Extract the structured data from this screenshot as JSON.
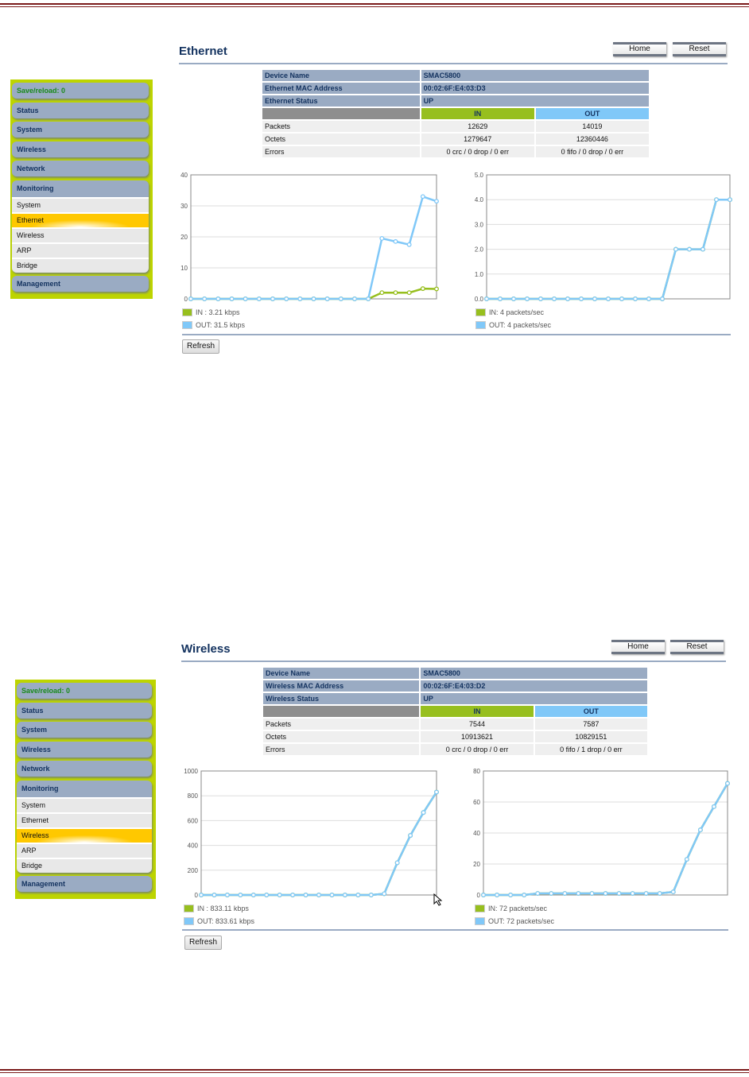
{
  "colors": {
    "in": "#97bf1e",
    "out": "#80c8f8"
  },
  "sections": [
    {
      "title": "Ethernet",
      "home": "Home",
      "reset": "Reset",
      "refresh": "Refresh",
      "sidebar": {
        "save": "Save/reload: 0",
        "items": [
          "Status",
          "System",
          "Wireless",
          "Network"
        ],
        "group": "Monitoring",
        "subs": [
          "System",
          "Ethernet",
          "Wireless",
          "ARP",
          "Bridge"
        ],
        "active": 1,
        "last": "Management"
      },
      "info": [
        [
          "Device Name",
          "SMAC5800"
        ],
        [
          "Ethernet MAC Address",
          "00:02:6F:E4:03:D3"
        ],
        [
          "Ethernet Status",
          "UP"
        ]
      ],
      "in_label": "IN",
      "out_label": "OUT",
      "stats": [
        [
          "Packets",
          "12629",
          "14019"
        ],
        [
          "Octets",
          "1279647",
          "12360446"
        ],
        [
          "Errors",
          "0 crc / 0 drop / 0 err",
          "0 fifo / 0 drop / 0 err"
        ]
      ],
      "charts": [
        {
          "type": "line",
          "ylim": [
            0,
            40
          ],
          "yticks": [
            "0",
            "10",
            "20",
            "30",
            "40"
          ],
          "legend_in": "IN : 3.21 kbps",
          "legend_out": "OUT: 31.5 kbps",
          "series": [
            {
              "name": "IN",
              "values": [
                0,
                0,
                0,
                0,
                0,
                0,
                0,
                0,
                0,
                0,
                0,
                0,
                0,
                0,
                2,
                2,
                2,
                3.3,
                3.2
              ]
            },
            {
              "name": "OUT",
              "values": [
                0,
                0,
                0,
                0,
                0,
                0,
                0,
                0,
                0,
                0,
                0,
                0,
                0,
                0,
                19.5,
                18.5,
                17.5,
                33,
                31.5
              ]
            }
          ]
        },
        {
          "type": "line",
          "ylim": [
            0,
            5
          ],
          "yticks": [
            "0.0",
            "1.0",
            "2.0",
            "3.0",
            "4.0",
            "5.0"
          ],
          "legend_in": "IN: 4 packets/sec",
          "legend_out": "OUT: 4 packets/sec",
          "series": [
            {
              "name": "IN",
              "values": [
                0,
                0,
                0,
                0,
                0,
                0,
                0,
                0,
                0,
                0,
                0,
                0,
                0,
                0,
                2,
                2,
                2,
                4,
                4
              ]
            },
            {
              "name": "OUT",
              "values": [
                0,
                0,
                0,
                0,
                0,
                0,
                0,
                0,
                0,
                0,
                0,
                0,
                0,
                0,
                2,
                2,
                2,
                4,
                4
              ]
            }
          ]
        }
      ]
    },
    {
      "title": "Wireless",
      "home": "Home",
      "reset": "Reset",
      "refresh": "Refresh",
      "sidebar": {
        "save": "Save/reload: 0",
        "items": [
          "Status",
          "System",
          "Wireless",
          "Network"
        ],
        "group": "Monitoring",
        "subs": [
          "System",
          "Ethernet",
          "Wireless",
          "ARP",
          "Bridge"
        ],
        "active": 2,
        "last": "Management"
      },
      "info": [
        [
          "Device Name",
          "SMAC5800"
        ],
        [
          "Wireless MAC Address",
          "00:02:6F:E4:03:D2"
        ],
        [
          "Wireless Status",
          "UP"
        ]
      ],
      "in_label": "IN",
      "out_label": "OUT",
      "stats": [
        [
          "Packets",
          "7544",
          "7587"
        ],
        [
          "Octets",
          "10913621",
          "10829151"
        ],
        [
          "Errors",
          "0 crc / 0 drop / 0 err",
          "0 fifo / 1 drop / 0 err"
        ]
      ],
      "charts": [
        {
          "type": "line",
          "ylim": [
            0,
            1000
          ],
          "yticks": [
            "0",
            "200",
            "400",
            "600",
            "800",
            "1000"
          ],
          "legend_in": "IN : 833.11 kbps",
          "legend_out": "OUT: 833.61 kbps",
          "series": [
            {
              "name": "IN",
              "values": [
                0,
                0,
                0,
                0,
                0,
                0,
                0,
                0,
                0,
                0,
                0,
                0,
                0,
                0,
                10,
                260,
                480,
                665,
                830
              ]
            },
            {
              "name": "OUT",
              "values": [
                0,
                0,
                0,
                0,
                0,
                0,
                0,
                0,
                0,
                0,
                0,
                0,
                0,
                0,
                10,
                260,
                480,
                665,
                830
              ]
            }
          ]
        },
        {
          "type": "line",
          "ylim": [
            0,
            80
          ],
          "yticks": [
            "0",
            "20",
            "40",
            "60",
            "80"
          ],
          "legend_in": "IN: 72 packets/sec",
          "legend_out": "OUT: 72 packets/sec",
          "series": [
            {
              "name": "IN",
              "values": [
                0,
                0,
                0,
                0,
                1,
                1,
                1,
                1,
                1,
                1,
                1,
                1,
                1,
                1,
                2,
                23,
                42,
                57,
                72
              ]
            },
            {
              "name": "OUT",
              "values": [
                0,
                0,
                0,
                0,
                1,
                1,
                1,
                1,
                1,
                1,
                1,
                1,
                1,
                1,
                2,
                23,
                42,
                57,
                72
              ]
            }
          ]
        }
      ]
    }
  ]
}
